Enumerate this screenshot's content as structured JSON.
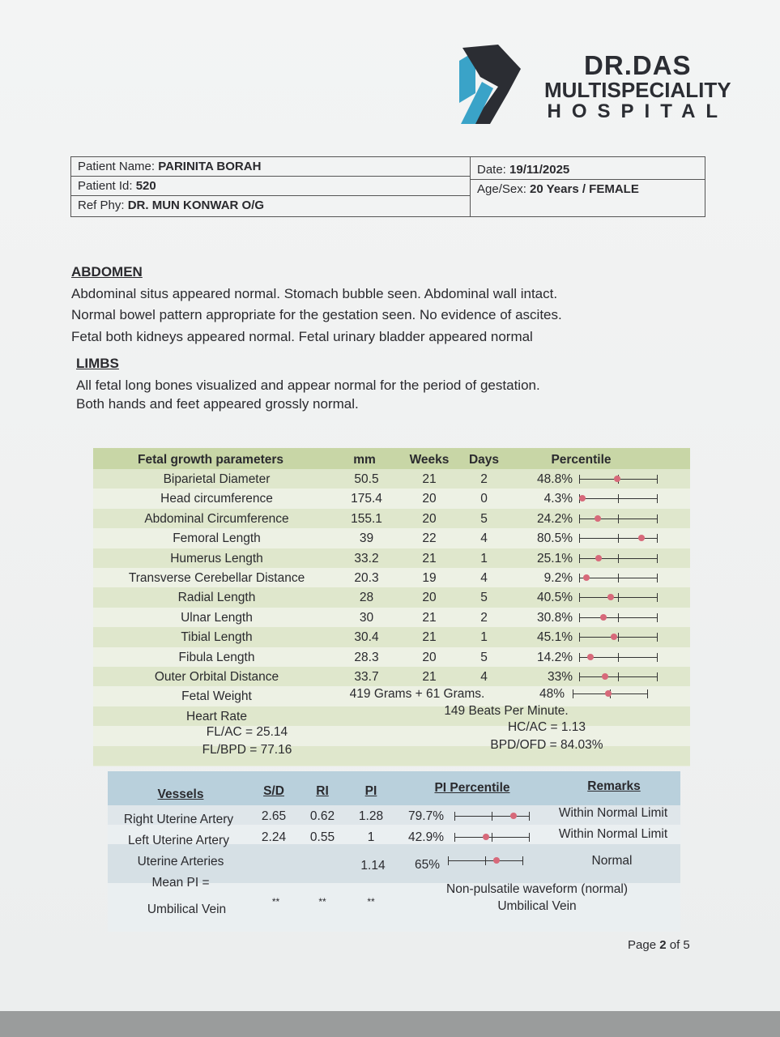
{
  "hospital": {
    "line1": "DR.DAS",
    "line2": "MULTISPECIALITY",
    "line3": "HOSPITAL",
    "logo_colors": [
      "#3aa3c8",
      "#2b2d33"
    ]
  },
  "patient": {
    "name_label": "Patient Name:",
    "name": "PARINITA BORAH",
    "id_label": "Patient Id:",
    "id": "520",
    "ref_label": "Ref Phy:",
    "ref": "DR. MUN KONWAR O/G",
    "date_label": "Date:",
    "date": "19/11/2025",
    "agesex_label": "Age/Sex:",
    "agesex": "20 Years / FEMALE"
  },
  "abdomen": {
    "heading": "ABDOMEN",
    "lines": [
      "Abdominal situs appeared normal. Stomach bubble seen. Abdominal wall intact.",
      "Normal bowel pattern appropriate for the gestation seen. No evidence of ascites.",
      "Fetal both kidneys appeared normal. Fetal urinary bladder appeared normal"
    ]
  },
  "limbs": {
    "heading": "LIMBS",
    "lines": [
      "All fetal long bones visualized and appear normal for the period of gestation.",
      "Both hands and feet appeared grossly normal."
    ]
  },
  "growth": {
    "headers": [
      "Fetal growth parameters",
      "mm",
      "Weeks",
      "Days",
      "Percentile"
    ],
    "rows": [
      {
        "name": "Biparietal Diameter",
        "mm": "50.5",
        "weeks": "21",
        "days": "2",
        "pct": "48.8%",
        "pv": 48.8
      },
      {
        "name": "Head circumference",
        "mm": "175.4",
        "weeks": "20",
        "days": "0",
        "pct": "4.3%",
        "pv": 4.3
      },
      {
        "name": "Abdominal Circumference",
        "mm": "155.1",
        "weeks": "20",
        "days": "5",
        "pct": "24.2%",
        "pv": 24.2
      },
      {
        "name": "Femoral Length",
        "mm": "39",
        "weeks": "22",
        "days": "4",
        "pct": "80.5%",
        "pv": 80.5
      },
      {
        "name": "Humerus Length",
        "mm": "33.2",
        "weeks": "21",
        "days": "1",
        "pct": "25.1%",
        "pv": 25.1
      },
      {
        "name": "Transverse Cerebellar Distance",
        "mm": "20.3",
        "weeks": "19",
        "days": "4",
        "pct": "9.2%",
        "pv": 9.2
      },
      {
        "name": "Radial Length",
        "mm": "28",
        "weeks": "20",
        "days": "5",
        "pct": "40.5%",
        "pv": 40.5
      },
      {
        "name": "Ulnar Length",
        "mm": "30",
        "weeks": "21",
        "days": "2",
        "pct": "30.8%",
        "pv": 30.8
      },
      {
        "name": "Tibial Length",
        "mm": "30.4",
        "weeks": "21",
        "days": "1",
        "pct": "45.1%",
        "pv": 45.1
      },
      {
        "name": "Fibula Length",
        "mm": "28.3",
        "weeks": "20",
        "days": "5",
        "pct": "14.2%",
        "pv": 14.2
      },
      {
        "name": "Outer Orbital Distance",
        "mm": "33.7",
        "weeks": "21",
        "days": "4",
        "pct": "33%",
        "pv": 33
      }
    ],
    "fetal_weight": {
      "name": "Fetal Weight",
      "value": "419 Grams + 61 Grams.",
      "pct": "48%",
      "pv": 48
    },
    "heart_rate": {
      "name": "Heart Rate",
      "value": "149 Beats Per Minute."
    },
    "fl_ac": "FL/AC = 25.14",
    "fl_bpd": "FL/BPD = 77.16",
    "hc_ac": "HC/AC = 1.13",
    "bpd_ofd": "BPD/OFD = 84.03%"
  },
  "vessels": {
    "headers": [
      "Vessels",
      "S/D",
      "RI",
      "PI",
      "PI Percentile",
      "Remarks"
    ],
    "rows": [
      {
        "name": "Right Uterine Artery",
        "sd": "2.65",
        "ri": "0.62",
        "pi": "1.28",
        "pct": "79.7%",
        "pv": 79.7,
        "remark": "Within Normal Limit"
      },
      {
        "name": "Left Uterine Artery",
        "sd": "2.24",
        "ri": "0.55",
        "pi": "1",
        "pct": "42.9%",
        "pv": 42.9,
        "remark": "Within Normal Limit"
      }
    ],
    "mean": {
      "name1": "Uterine Arteries",
      "name2": "Mean PI =",
      "pi": "1.14",
      "pct": "65%",
      "pv": 65,
      "remark": "Normal"
    },
    "uv": {
      "name": "Umbilical Vein",
      "sd": "**",
      "ri": "**",
      "pi": "**",
      "remark1": "Non-pulsatile waveform (normal)",
      "remark2": "Umbilical Vein"
    }
  },
  "footer": {
    "page_label": "Page",
    "page": "2",
    "of": "of 5"
  }
}
